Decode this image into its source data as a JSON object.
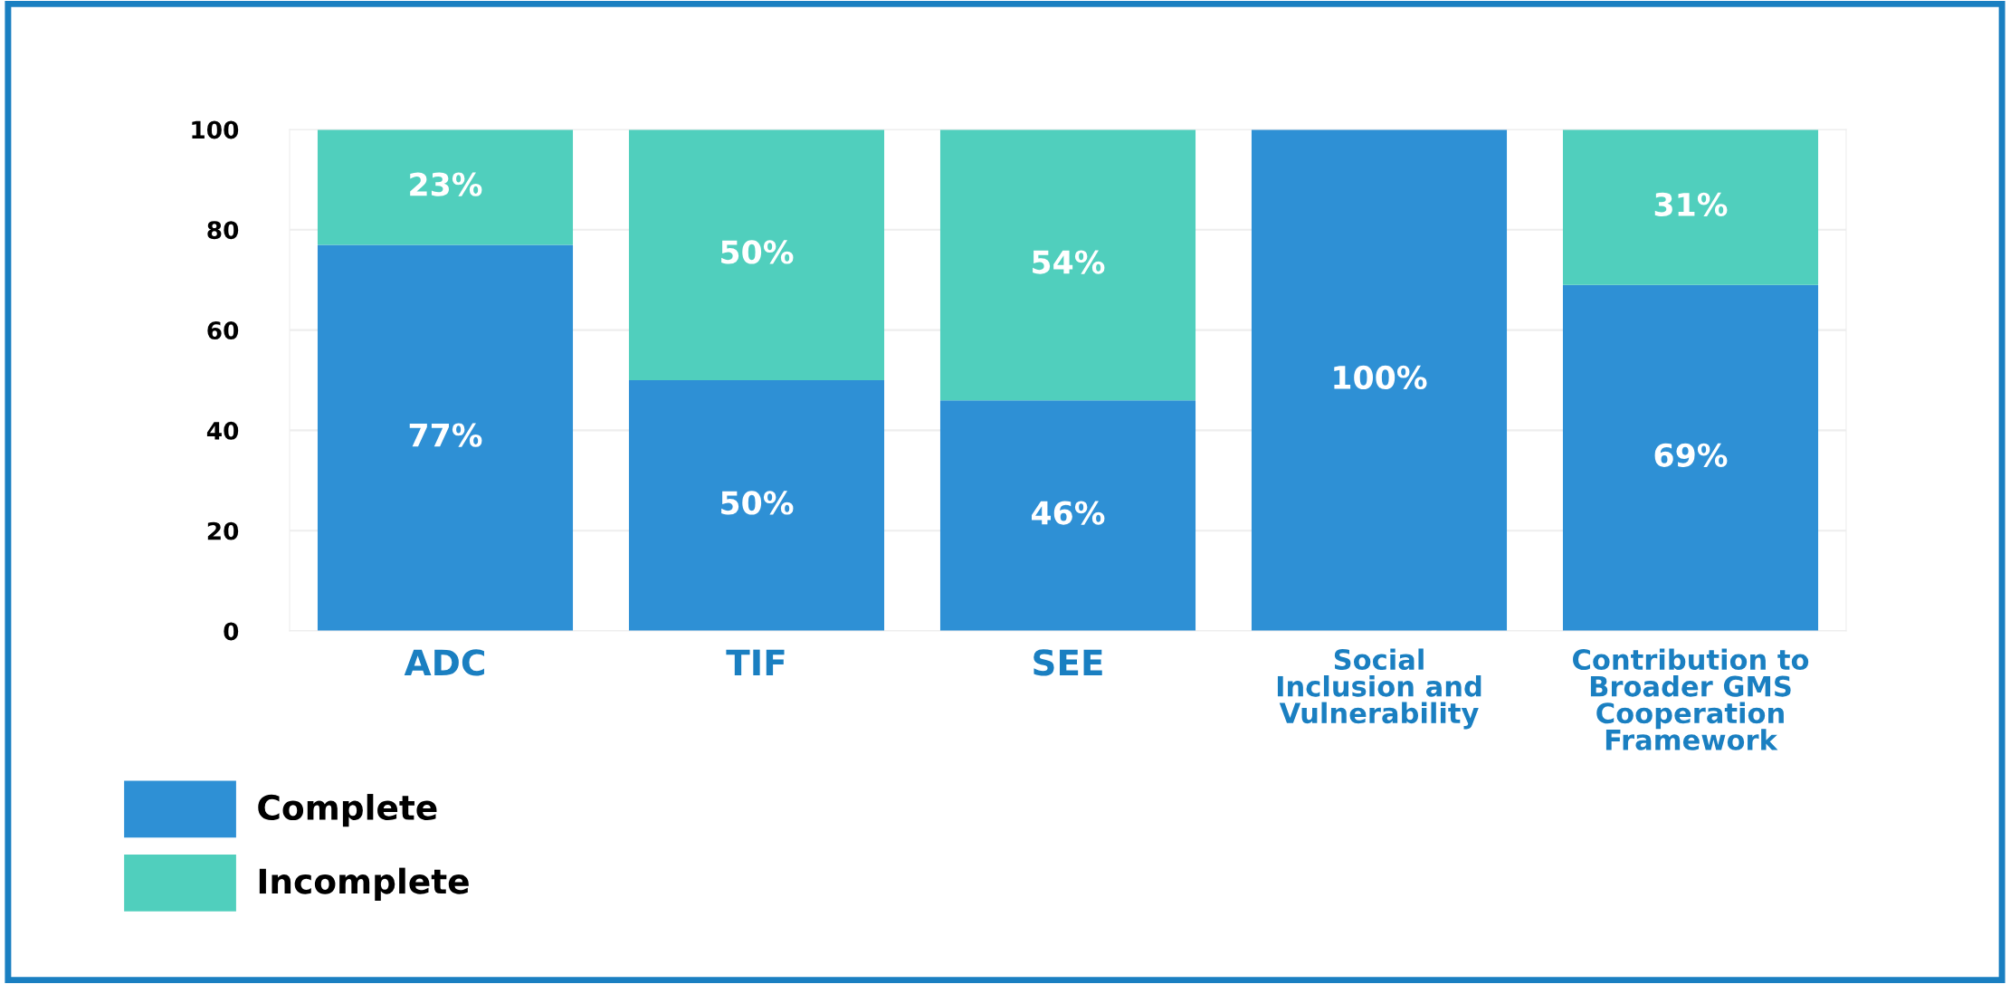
{
  "chart_data": {
    "type": "bar",
    "stacked": true,
    "categories": [
      "ADC",
      "TIF",
      "SEE",
      "Social\nInclusion and\nVulnerability",
      "Contribution to\nBroader GMS\nCooperation\nFramework"
    ],
    "series": [
      {
        "name": "Complete",
        "color": "#2e90d5",
        "values": [
          77,
          50,
          46,
          100,
          69
        ],
        "value_labels": [
          "77%",
          "50%",
          "46%",
          "100%",
          "69%"
        ]
      },
      {
        "name": "Incomplete",
        "color": "#50cfbd",
        "values": [
          23,
          50,
          54,
          0,
          31
        ],
        "value_labels": [
          "23%",
          "50%",
          "54%",
          null,
          "31%"
        ]
      }
    ],
    "ylim": [
      0,
      100
    ],
    "yticks": [
      0,
      20,
      40,
      60,
      80,
      100
    ],
    "grid": "y",
    "legend": "bottom left"
  }
}
